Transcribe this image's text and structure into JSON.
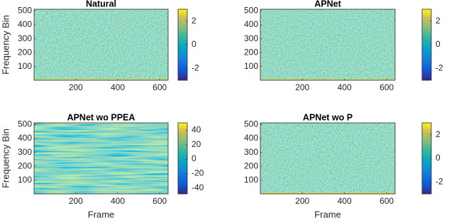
{
  "chart_data": [
    {
      "type": "heatmap",
      "title": "Natural",
      "ylabel": "Frequency Bin",
      "xlim": [
        1,
        640
      ],
      "xticks": [
        200,
        400,
        600
      ],
      "ylim": [
        1,
        513
      ],
      "yticks": [
        100,
        200,
        300,
        400,
        500
      ],
      "colormap": "parula",
      "clim": [
        -3,
        3
      ],
      "cticks": [
        -2,
        0,
        2
      ]
    },
    {
      "type": "heatmap",
      "title": "APNet",
      "xlim": [
        1,
        640
      ],
      "xticks": [
        200,
        400,
        600
      ],
      "ylim": [
        1,
        513
      ],
      "yticks": [
        100,
        200,
        300,
        400,
        500
      ],
      "colormap": "parula",
      "clim": [
        -3,
        3
      ],
      "cticks": [
        -2,
        0,
        2
      ]
    },
    {
      "type": "heatmap",
      "title": "APNet wo PPEA",
      "xlabel": "Frame",
      "ylabel": "Frequency Bin",
      "xlim": [
        1,
        640
      ],
      "xticks": [
        200,
        400,
        600
      ],
      "ylim": [
        1,
        513
      ],
      "yticks": [
        100,
        200,
        300,
        400,
        500
      ],
      "colormap": "parula",
      "clim": [
        -48,
        50
      ],
      "cticks": [
        -40,
        -20,
        0,
        20,
        40
      ]
    },
    {
      "type": "heatmap",
      "title": "APNet wo P",
      "xlabel": "Frame",
      "xlim": [
        1,
        640
      ],
      "xticks": [
        200,
        400,
        600
      ],
      "ylim": [
        1,
        513
      ],
      "yticks": [
        100,
        200,
        300,
        400,
        500
      ],
      "colormap": "parula",
      "clim": [
        -3,
        3
      ],
      "cticks": [
        -2,
        0,
        2
      ]
    }
  ]
}
